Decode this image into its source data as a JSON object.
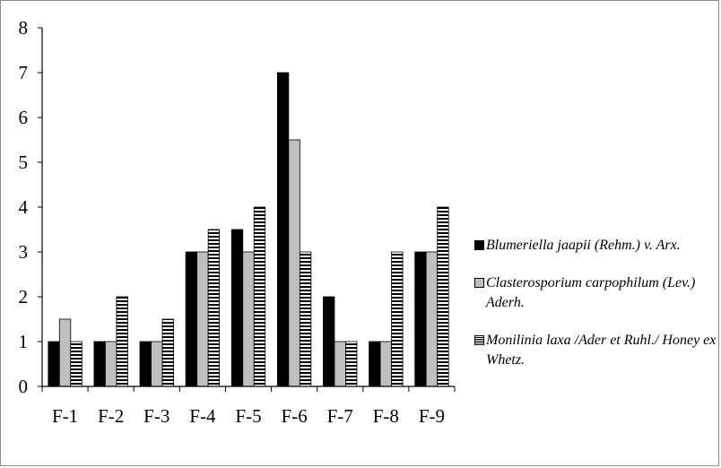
{
  "chart_data": {
    "type": "bar",
    "title": "",
    "xlabel": "",
    "ylabel": "",
    "categories": [
      "F-1",
      "F-2",
      "F-3",
      "F-4",
      "F-5",
      "F-6",
      "F-7",
      "F-8",
      "F-9"
    ],
    "ylim": [
      0,
      8
    ],
    "yticks": [
      "0",
      "1",
      "2",
      "3",
      "4",
      "5",
      "6",
      "7",
      "8"
    ],
    "grid": false,
    "legend_position": "right",
    "series": [
      {
        "name": "Blumeriella jaapii (Rehm.) v. Arx.",
        "color": "#000000",
        "pattern": "solid",
        "values": [
          1,
          1,
          1,
          3,
          3.5,
          7,
          2,
          1,
          3
        ]
      },
      {
        "name": "Clasterosporium carpophilum (Lev.) Aderh.",
        "color": "#bfbfbf",
        "pattern": "solid",
        "values": [
          1.5,
          1,
          1,
          3,
          3,
          5.5,
          1,
          1,
          3
        ]
      },
      {
        "name": "Monilinia laxa /Ader et Ruhl./ Honey ex Whetz.",
        "color": "#000000",
        "pattern": "horizontal-stripes",
        "values": [
          1,
          2,
          1.5,
          3.5,
          4,
          3,
          1,
          3,
          4
        ]
      }
    ]
  }
}
